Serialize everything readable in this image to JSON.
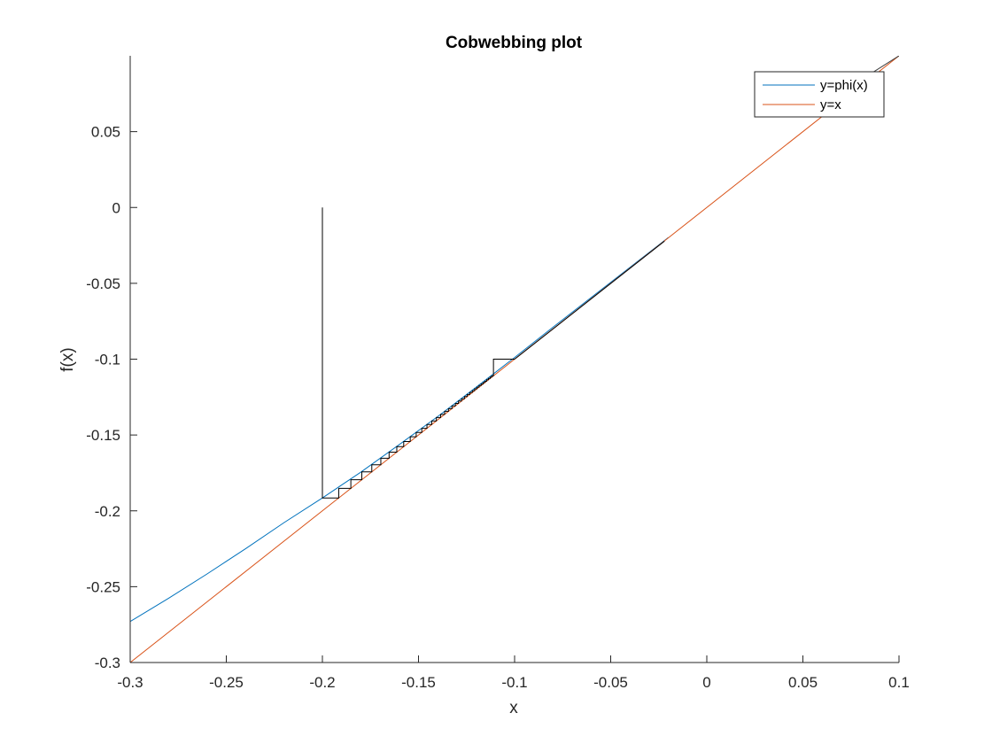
{
  "chart_data": {
    "type": "line",
    "title": "Cobwebbing plot",
    "xlabel": "x",
    "ylabel": "f(x)",
    "xlim": [
      -0.3,
      0.1
    ],
    "ylim": [
      -0.3,
      0.1
    ],
    "xticks": [
      "-0.3",
      "-0.25",
      "-0.2",
      "-0.15",
      "-0.1",
      "-0.05",
      "0",
      "0.05",
      "0.1"
    ],
    "yticks": [
      "-0.3",
      "-0.25",
      "-0.2",
      "-0.15",
      "-0.1",
      "-0.05",
      "0",
      "0.05"
    ],
    "grid": false,
    "legend_position": "top-right",
    "series": [
      {
        "name": "y=phi(x)",
        "color": "#0072BD",
        "x": [
          -0.3,
          -0.28,
          -0.26,
          -0.24,
          -0.22,
          -0.2,
          -0.18,
          -0.16,
          -0.14,
          -0.12,
          -0.1,
          -0.08,
          -0.06,
          -0.04,
          -0.02
        ],
        "y": [
          -0.273,
          -0.2576,
          -0.2416,
          -0.225,
          -0.2078,
          -0.1915,
          -0.1745,
          -0.1563,
          -0.1378,
          -0.1185,
          -0.0989,
          -0.0789,
          -0.0592,
          -0.0395,
          -0.0198
        ]
      },
      {
        "name": "y=x",
        "color": "#D95319",
        "x": [
          -0.3,
          0.1
        ],
        "y": [
          -0.3,
          0.1
        ]
      },
      {
        "name": "",
        "color": "#000000",
        "x": [
          -0.2,
          -0.2,
          -0.1915,
          -0.1915,
          -0.1852,
          -0.1852,
          -0.1795,
          -0.1795,
          -0.1743,
          -0.1743,
          -0.1696,
          -0.1696,
          -0.1653,
          -0.1653,
          -0.1613,
          -0.1613,
          -0.1577,
          -0.1577,
          -0.1543,
          -0.1543,
          -0.1512,
          -0.1512,
          -0.1483,
          -0.1483,
          -0.1456,
          -0.1456,
          -0.1431,
          -0.1431,
          -0.1407,
          -0.1407,
          -0.1385,
          -0.1385,
          -0.1364,
          -0.1364,
          -0.1344,
          -0.1344,
          -0.1326,
          -0.1326,
          -0.1308,
          -0.1308,
          -0.1292,
          -0.1292,
          -0.1276,
          -0.1276,
          -0.1261,
          -0.1261,
          -0.1247,
          -0.1247,
          -0.1233,
          -0.1233,
          -0.122,
          -0.122,
          -0.1208,
          -0.1208,
          -0.1196,
          -0.1196,
          -0.1185,
          -0.1185,
          -0.1174,
          -0.1174,
          -0.1164,
          -0.1164,
          -0.1154,
          -0.1154,
          -0.1145,
          -0.1145,
          -0.1136,
          -0.1136,
          -0.1127,
          -0.1127,
          -0.1119,
          -0.1119,
          -0.111,
          -0.111,
          -0.1
        ],
        "y": [
          0,
          -0.1915,
          -0.1915,
          -0.1852,
          -0.1852,
          -0.1795,
          -0.1795,
          -0.1743,
          -0.1743,
          -0.1696,
          -0.1696,
          -0.1653,
          -0.1653,
          -0.1613,
          -0.1613,
          -0.1577,
          -0.1577,
          -0.1543,
          -0.1543,
          -0.1512,
          -0.1512,
          -0.1483,
          -0.1483,
          -0.1456,
          -0.1456,
          -0.1431,
          -0.1431,
          -0.1407,
          -0.1407,
          -0.1385,
          -0.1385,
          -0.1364,
          -0.1364,
          -0.1344,
          -0.1344,
          -0.1326,
          -0.1326,
          -0.1308,
          -0.1308,
          -0.1292,
          -0.1292,
          -0.1276,
          -0.1276,
          -0.1261,
          -0.1261,
          -0.1247,
          -0.1247,
          -0.1233,
          -0.1233,
          -0.122,
          -0.122,
          -0.1208,
          -0.1208,
          -0.1196,
          -0.1196,
          -0.1185,
          -0.1185,
          -0.1174,
          -0.1174,
          -0.1164,
          -0.1164,
          -0.1154,
          -0.1154,
          -0.1145,
          -0.1145,
          -0.1136,
          -0.1136,
          -0.1127,
          -0.1127,
          -0.1119,
          -0.1119,
          -0.111,
          -0.111,
          -0.1,
          -0.1
        ]
      },
      {
        "name": "",
        "color": "#000000",
        "x": [
          -0.1,
          -0.022
        ],
        "y": [
          -0.1,
          -0.0222
        ]
      },
      {
        "name": "",
        "color": "#404040",
        "x": [
          0.085,
          0.1
        ],
        "y": [
          0.088,
          0.1
        ]
      }
    ]
  }
}
